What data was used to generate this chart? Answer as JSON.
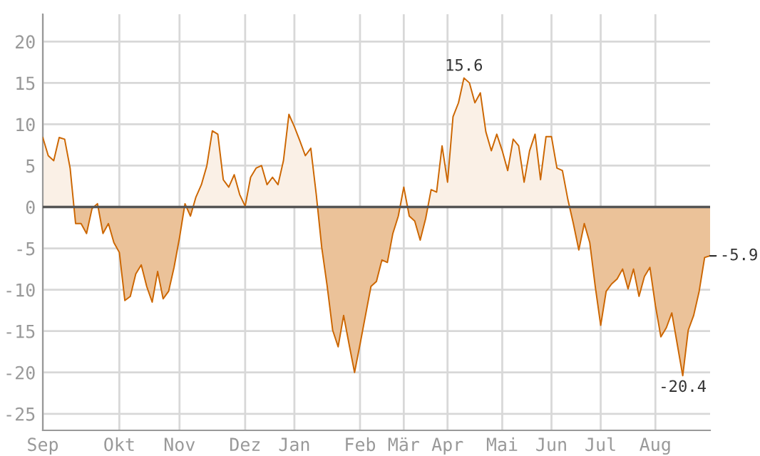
{
  "chart_data": {
    "type": "area",
    "categories": [
      "Sep",
      null,
      null,
      null,
      null,
      null,
      null,
      null,
      null,
      null,
      null,
      null,
      null,
      null,
      "Okt",
      null,
      null,
      null,
      null,
      null,
      null,
      null,
      null,
      null,
      null,
      "Nov",
      null,
      null,
      null,
      null,
      null,
      null,
      null,
      null,
      null,
      null,
      null,
      "Dez",
      null,
      null,
      null,
      null,
      null,
      null,
      null,
      null,
      "Jan",
      null,
      null,
      null,
      null,
      null,
      null,
      null,
      null,
      null,
      null,
      null,
      "Feb",
      null,
      null,
      null,
      null,
      null,
      null,
      null,
      "Mär",
      null,
      null,
      null,
      null,
      null,
      null,
      null,
      "Apr",
      null,
      null,
      null,
      null,
      null,
      null,
      null,
      null,
      null,
      "Mai",
      null,
      null,
      null,
      null,
      null,
      null,
      null,
      null,
      "Jun",
      null,
      null,
      null,
      null,
      null,
      null,
      null,
      null,
      "Jul",
      null,
      null,
      null,
      null,
      null,
      null,
      null,
      null,
      null,
      "Aug",
      null,
      null,
      null,
      null,
      null,
      null,
      null,
      null,
      null,
      null
    ],
    "series": [
      {
        "color": "#cc6600",
        "values": [
          8.4,
          6.2,
          5.6,
          8.4,
          8.2,
          4.7,
          -2.0,
          -2.0,
          -3.2,
          -0.2,
          0.4,
          -3.2,
          -2.0,
          -4.3,
          -5.5,
          -11.3,
          -10.8,
          -8.1,
          -7.0,
          -9.6,
          -11.5,
          -7.8,
          -11.1,
          -10.2,
          -7.3,
          -3.7,
          0.4,
          -1.1,
          1.2,
          2.7,
          5.0,
          9.2,
          8.8,
          3.3,
          2.4,
          3.9,
          1.5,
          0.1,
          3.6,
          4.7,
          5.0,
          2.7,
          3.6,
          2.7,
          5.6,
          11.2,
          9.7,
          8.0,
          6.2,
          7.1,
          1.5,
          -4.9,
          -9.6,
          -14.9,
          -16.9,
          -13.1,
          -16.6,
          -20.0,
          -16.6,
          -13.1,
          -9.6,
          -9.0,
          -6.4,
          -6.7,
          -3.2,
          -1.1,
          2.4,
          -1.1,
          -1.7,
          -4.0,
          -1.4,
          2.1,
          1.8,
          7.4,
          3.0,
          10.9,
          12.6,
          15.6,
          15.0,
          12.6,
          13.8,
          9.1,
          6.8,
          8.8,
          6.8,
          4.4,
          8.2,
          7.4,
          3.0,
          6.8,
          8.8,
          3.3,
          8.5,
          8.5,
          4.7,
          4.4,
          0.9,
          -2.0,
          -5.2,
          -2.0,
          -4.3,
          -9.6,
          -14.3,
          -10.2,
          -9.3,
          -8.7,
          -7.5,
          -9.9,
          -7.5,
          -10.8,
          -8.4,
          -7.3,
          -11.9,
          -15.7,
          -14.6,
          -12.8,
          -16.6,
          -20.4,
          -14.9,
          -13.1,
          -10.2,
          -6.1,
          -5.9
        ]
      }
    ],
    "ylim": [
      -27,
      23.3
    ],
    "yticks": [
      -25,
      -20,
      -15,
      -10,
      -5,
      0,
      5,
      10,
      15,
      20
    ],
    "grid": true,
    "ref_lines": [
      {
        "axis": "y",
        "value": 0,
        "color": "#555555"
      }
    ],
    "annotations": [
      {
        "text": "15.6",
        "y": 15.6
      },
      {
        "text": "-20.4",
        "y": -20.4
      },
      "-5.9"
    ]
  }
}
